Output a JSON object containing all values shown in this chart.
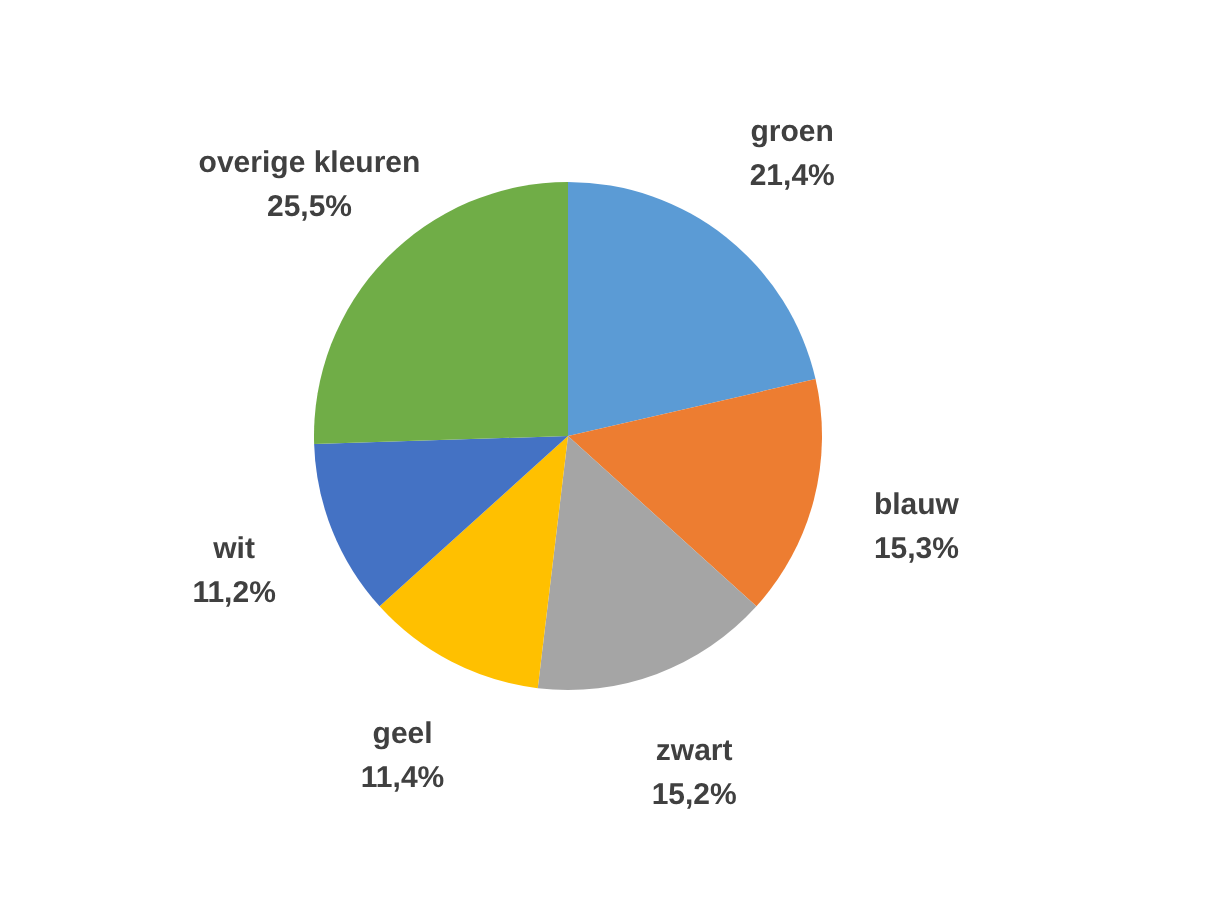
{
  "chart_data": {
    "type": "pie",
    "categories": [
      "groen",
      "blauw",
      "zwart",
      "geel",
      "wit",
      "overige kleuren"
    ],
    "values": [
      21.4,
      15.3,
      15.2,
      11.4,
      11.2,
      25.5
    ],
    "colors": [
      "#5b9bd5",
      "#ed7d31",
      "#a5a5a5",
      "#ffc000",
      "#4472c4",
      "#70ad47"
    ],
    "value_labels": [
      "21,4%",
      "15,3%",
      "15,2%",
      "11,4%",
      "11,2%",
      "25,5%"
    ]
  }
}
